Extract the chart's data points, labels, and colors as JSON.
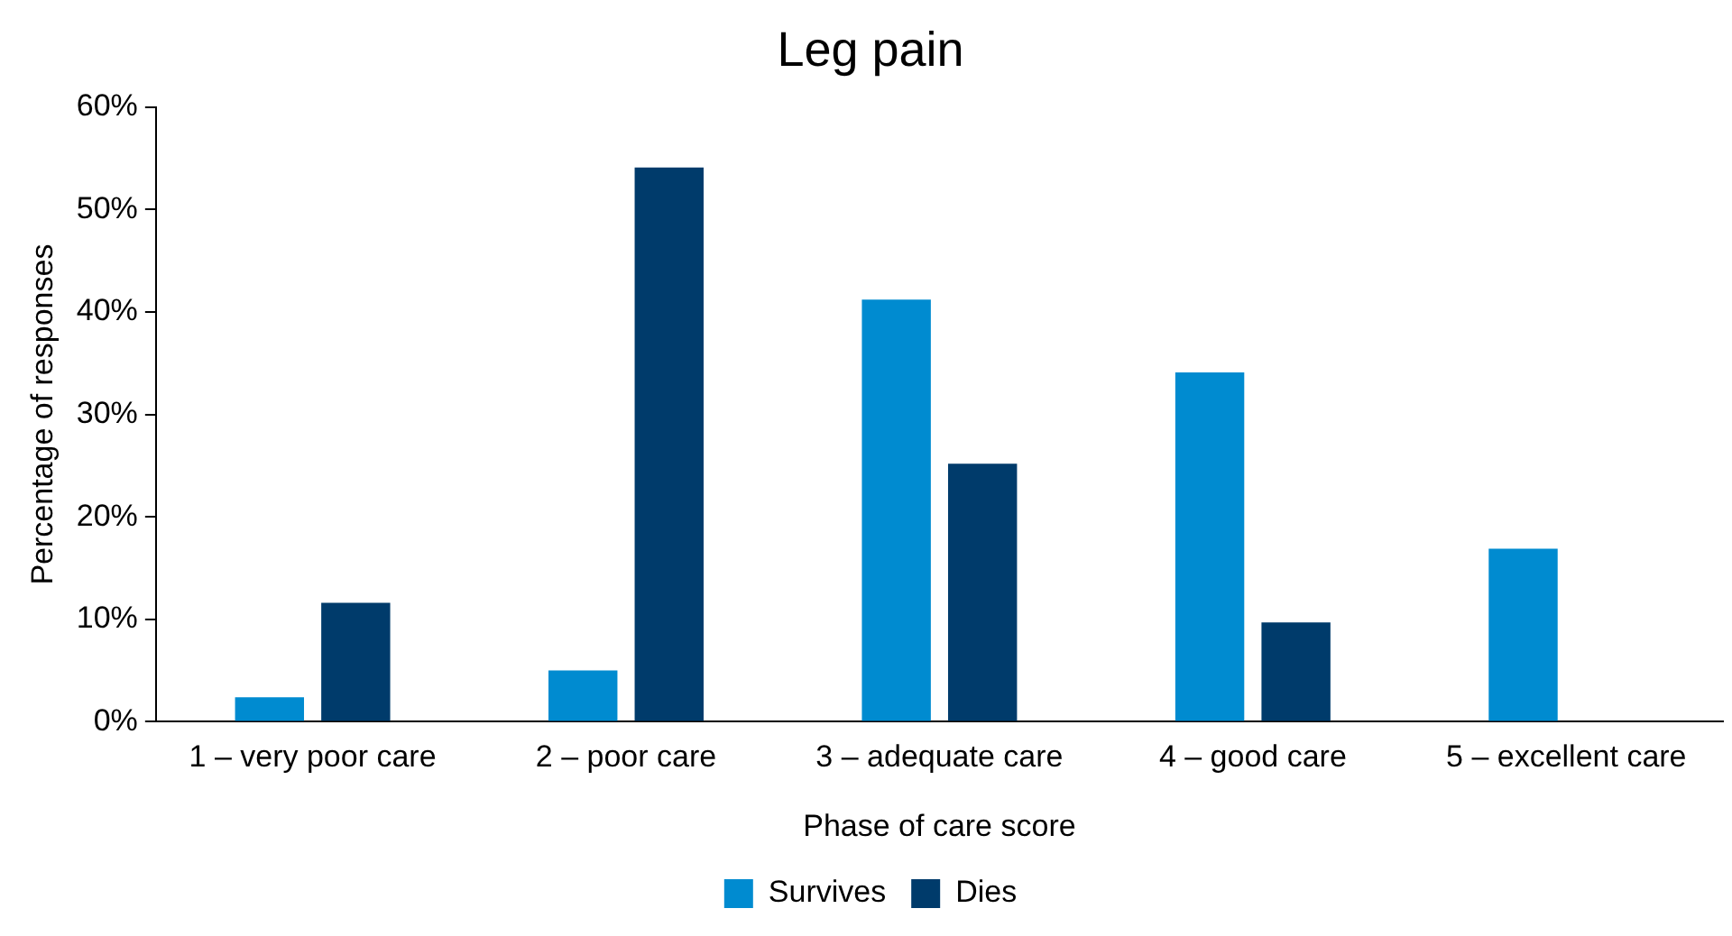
{
  "chart_data": {
    "type": "bar",
    "title": "Leg pain",
    "xlabel": "Phase of care score",
    "ylabel": "Percentage of responses",
    "categories": [
      "1 – very poor care",
      "2 – poor care",
      "3 – adequate care",
      "4 – good care",
      "5 – excellent care"
    ],
    "series": [
      {
        "name": "Survives",
        "color": "#008bd0",
        "values": [
          2.4,
          5.0,
          41.2,
          34.1,
          16.9
        ]
      },
      {
        "name": "Dies",
        "color": "#003b6b",
        "values": [
          11.6,
          54.1,
          25.2,
          9.7,
          0
        ]
      }
    ],
    "ylim": [
      0,
      60
    ],
    "yticks": [
      {
        "value": 0,
        "label": "0%"
      },
      {
        "value": 10,
        "label": "10%"
      },
      {
        "value": 20,
        "label": "20%"
      },
      {
        "value": 30,
        "label": "30%"
      },
      {
        "value": 40,
        "label": "40%"
      },
      {
        "value": 50,
        "label": "50%"
      },
      {
        "value": 60,
        "label": "60%"
      }
    ],
    "grid": false,
    "legend": "bottom"
  }
}
